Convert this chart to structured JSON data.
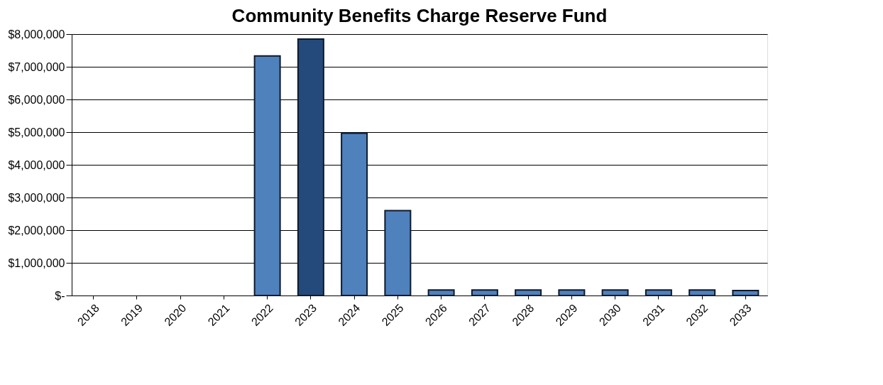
{
  "chart_data": {
    "type": "bar",
    "title": "Community Benefits Charge Reserve Fund",
    "categories": [
      "2018",
      "2019",
      "2020",
      "2021",
      "2022",
      "2023",
      "2024",
      "2025",
      "2026",
      "2027",
      "2028",
      "2029",
      "2030",
      "2031",
      "2032",
      "2033"
    ],
    "values": [
      null,
      null,
      null,
      null,
      7330000,
      7850000,
      4970000,
      2600000,
      170000,
      170000,
      170000,
      170000,
      170000,
      170000,
      170000,
      150000
    ],
    "colors": [
      "#4f81bd",
      "#4f81bd",
      "#4f81bd",
      "#4f81bd",
      "#4f81bd",
      "#244a7c",
      "#4f81bd",
      "#4f81bd",
      "#4f81bd",
      "#4f81bd",
      "#4f81bd",
      "#4f81bd",
      "#4f81bd",
      "#4f81bd",
      "#4f81bd",
      "#4f81bd"
    ],
    "ylim": [
      0,
      8000000
    ],
    "yticks": [
      {
        "value": 0,
        "label": "$-"
      },
      {
        "value": 1000000,
        "label": "$1,000,000"
      },
      {
        "value": 2000000,
        "label": "$2,000,000"
      },
      {
        "value": 3000000,
        "label": "$3,000,000"
      },
      {
        "value": 4000000,
        "label": "$4,000,000"
      },
      {
        "value": 5000000,
        "label": "$5,000,000"
      },
      {
        "value": 6000000,
        "label": "$6,000,000"
      },
      {
        "value": 7000000,
        "label": "$7,000,000"
      },
      {
        "value": 8000000,
        "label": "$8,000,000"
      }
    ],
    "grid": "y"
  }
}
